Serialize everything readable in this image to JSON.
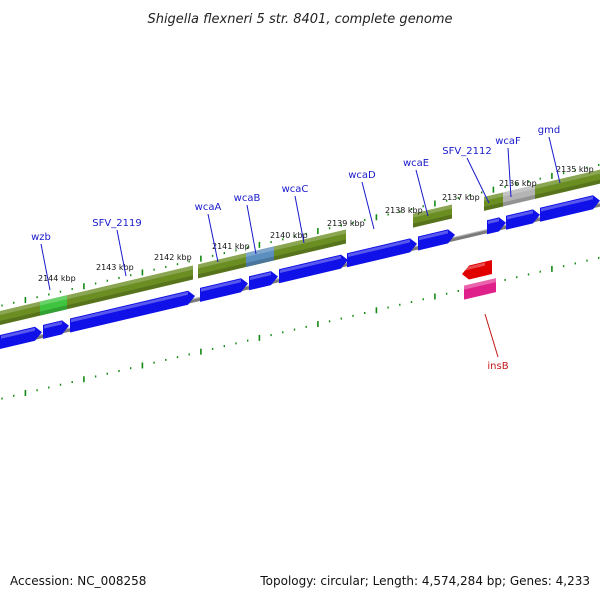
{
  "title": "Shigella flexneri 5 str. 8401, complete genome",
  "footer": {
    "accession": "Accession: NC_008258",
    "summary": "Topology: circular; Length: 4,574,284 bp; Genes: 4,233"
  },
  "colors": {
    "cds": "#1010e8",
    "rna": "#6b8e23",
    "highlight_green": "#3ec43e",
    "highlight_blue": "#5b8fbf",
    "highlight_gray": "#b4b4b4",
    "reverse_red": "#e00000",
    "reverse_pink": "#e0208a",
    "label": "#1a1acc",
    "label_reverse": "#c41818",
    "tick": "#138a13",
    "backbone": "#7a7a7a"
  },
  "ticks": [
    {
      "label": "2144 kbp"
    },
    {
      "label": "2143 kbp"
    },
    {
      "label": "2142 kbp"
    },
    {
      "label": "2141 kbp"
    },
    {
      "label": "2140 kbp"
    },
    {
      "label": "2139 kbp"
    },
    {
      "label": "2138 kbp"
    },
    {
      "label": "2137 kbp"
    },
    {
      "label": "2136 kbp"
    },
    {
      "label": "2135 kbp"
    }
  ],
  "genes": [
    {
      "label": "wzb",
      "strand": "forward"
    },
    {
      "label": "SFV_2119",
      "strand": "forward"
    },
    {
      "label": "wcaA",
      "strand": "forward"
    },
    {
      "label": "wcaB",
      "strand": "forward"
    },
    {
      "label": "wcaC",
      "strand": "forward"
    },
    {
      "label": "wcaD",
      "strand": "forward"
    },
    {
      "label": "wcaE",
      "strand": "forward"
    },
    {
      "label": "SFV_2112",
      "strand": "forward"
    },
    {
      "label": "wcaF",
      "strand": "forward"
    },
    {
      "label": "gmd",
      "strand": "forward"
    },
    {
      "label": "insB",
      "strand": "reverse"
    }
  ]
}
